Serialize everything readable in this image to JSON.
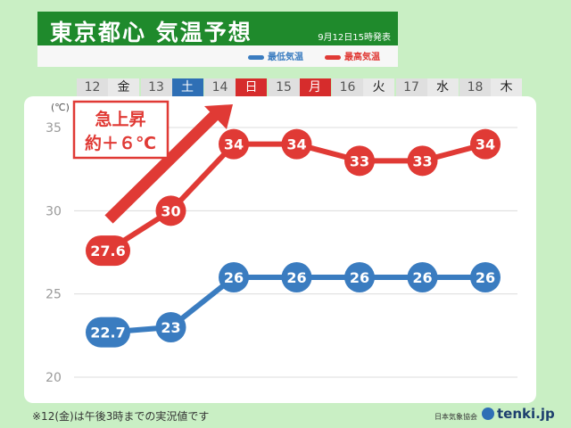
{
  "header": {
    "title": "東京都心 気温予想",
    "issued": "9月12日15時発表"
  },
  "legend": {
    "min_label": "最低気温",
    "max_label": "最高気温"
  },
  "days": [
    {
      "num": "12",
      "dow": "金",
      "type": "plain"
    },
    {
      "num": "13",
      "dow": "土",
      "type": "blue"
    },
    {
      "num": "14",
      "dow": "日",
      "type": "red"
    },
    {
      "num": "15",
      "dow": "月",
      "type": "red"
    },
    {
      "num": "16",
      "dow": "火",
      "type": "plain"
    },
    {
      "num": "17",
      "dow": "水",
      "type": "plain"
    },
    {
      "num": "18",
      "dow": "木",
      "type": "plain"
    }
  ],
  "annotation": {
    "line1": "急上昇",
    "line2": "約＋６℃"
  },
  "footer": {
    "note": "※12(金)は午後3時までの実況値です",
    "source": "日本気象協会",
    "brand": "tenki.jp"
  },
  "colors": {
    "max": "#e03a35",
    "min": "#3a7cc0",
    "title_bg": "#1f8a2c",
    "background": "#c9efc4"
  },
  "chart_data": {
    "type": "line",
    "unit_label": "(℃)",
    "categories": [
      "12",
      "13",
      "14",
      "15",
      "16",
      "17",
      "18"
    ],
    "series": [
      {
        "name": "最高気温",
        "values": [
          27.6,
          30,
          34,
          34,
          33,
          33,
          34
        ],
        "labels": [
          "27.6",
          "30",
          "34",
          "34",
          "33",
          "33",
          "34"
        ]
      },
      {
        "name": "最低気温",
        "values": [
          22.7,
          23,
          26,
          26,
          26,
          26,
          26
        ],
        "labels": [
          "22.7",
          "23",
          "26",
          "26",
          "26",
          "26",
          "26"
        ]
      }
    ],
    "yticks": [
      "35",
      "30",
      "25",
      "20"
    ],
    "ylim": [
      20,
      35
    ],
    "grid": true
  }
}
